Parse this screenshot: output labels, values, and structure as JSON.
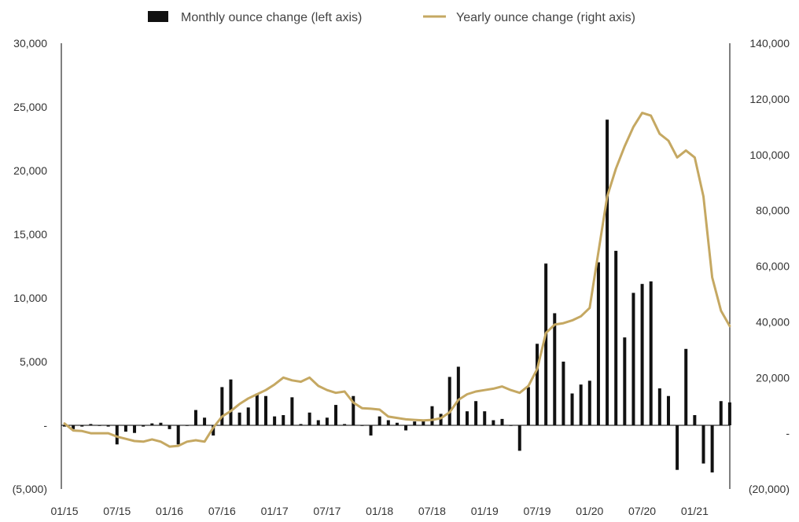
{
  "chart_data": {
    "type": "bar+line",
    "title": "",
    "legend": {
      "placement": "top-center",
      "entries": [
        {
          "label": "Monthly ounce change (left axis)",
          "kind": "bar",
          "color": "#111111"
        },
        {
          "label": "Yearly ounce change (right axis)",
          "kind": "line",
          "color": "#C5A862"
        }
      ]
    },
    "x_tick_labels": [
      "01/15",
      "07/15",
      "01/16",
      "07/16",
      "01/17",
      "07/17",
      "01/18",
      "07/18",
      "01/19",
      "07/19",
      "01/20",
      "07/20",
      "01/21"
    ],
    "y_left": {
      "min": -5000,
      "max": 30000,
      "step": 5000,
      "tick_labels": [
        "(5,000)",
        "-",
        "5,000",
        "10,000",
        "15,000",
        "20,000",
        "25,000",
        "30,000"
      ]
    },
    "y_right": {
      "min": -20000,
      "max": 140000,
      "step": 20000,
      "tick_labels": [
        "(20,000)",
        "-",
        "20,000",
        "40,000",
        "60,000",
        "80,000",
        "100,000",
        "120,000",
        "140,000"
      ]
    },
    "series": [
      {
        "name": "Monthly ounce change (left axis)",
        "axis": "left",
        "type": "bar",
        "color": "#111111",
        "values": [
          -100,
          -300,
          -100,
          100,
          -50,
          -100,
          -1500,
          -500,
          -600,
          -100,
          150,
          200,
          -300,
          -1500,
          -50,
          1200,
          600,
          -800,
          3000,
          3600,
          1000,
          1400,
          2500,
          2300,
          700,
          800,
          2200,
          100,
          1000,
          400,
          600,
          1600,
          100,
          2300,
          -50,
          -800,
          700,
          400,
          200,
          -400,
          300,
          400,
          1500,
          900,
          3800,
          4600,
          1100,
          1900,
          1100,
          400,
          500,
          -50,
          -2000,
          3000,
          6400,
          12700,
          8800,
          5000,
          2500,
          3200,
          3500,
          12800,
          24000,
          13700,
          6900,
          10400,
          11100,
          11300,
          2900,
          2300,
          -3500,
          6000,
          800,
          -3000,
          -3700,
          1900,
          1800
        ]
      },
      {
        "name": "Yearly ounce change (right axis)",
        "axis": "right",
        "type": "line",
        "color": "#C5A862",
        "values": [
          3500,
          1000,
          800,
          0,
          0,
          0,
          -1200,
          -2000,
          -2800,
          -3000,
          -2200,
          -3000,
          -4800,
          -4500,
          -3000,
          -2500,
          -3000,
          2000,
          6000,
          8000,
          10500,
          12500,
          14000,
          15500,
          17500,
          20000,
          19000,
          18500,
          20000,
          17000,
          15500,
          14500,
          15000,
          11000,
          9000,
          8800,
          8500,
          6000,
          5500,
          5000,
          4800,
          4600,
          4800,
          5400,
          7500,
          12000,
          14000,
          15000,
          15500,
          16000,
          16800,
          15500,
          14500,
          17000,
          23000,
          36000,
          39000,
          39500,
          40500,
          42000,
          45000,
          65000,
          85000,
          95000,
          103000,
          110000,
          115000,
          114000,
          107500,
          105000,
          99000,
          101500,
          99000,
          85000,
          56000,
          44000,
          38500
        ]
      }
    ]
  }
}
